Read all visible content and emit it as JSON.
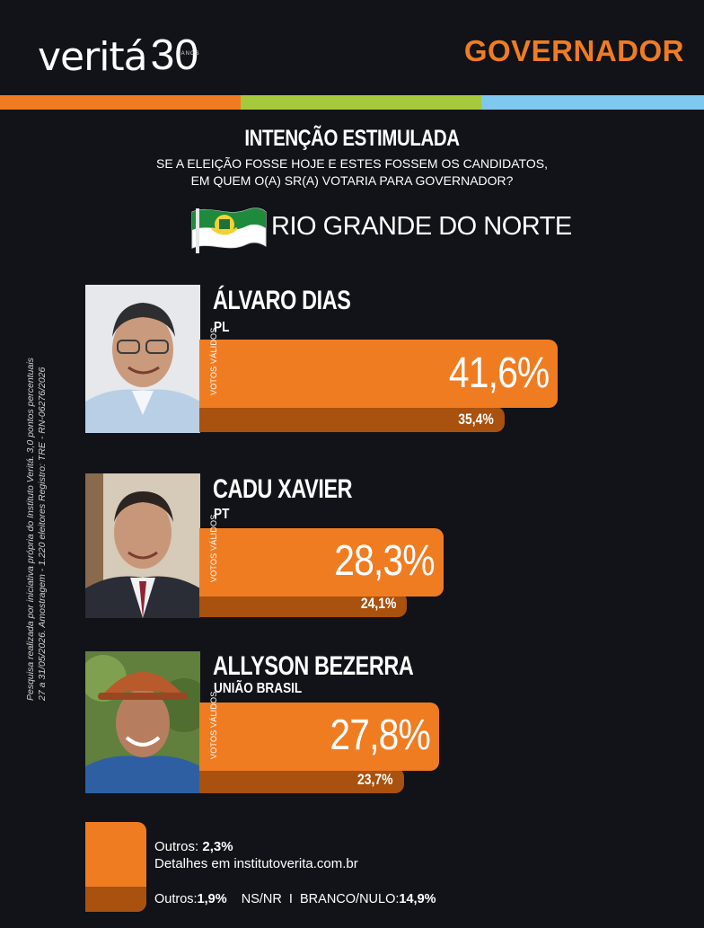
{
  "header": {
    "brand": "veritá",
    "years": "30",
    "years_caption": "ANOS",
    "section": "GOVERNADOR"
  },
  "colors": {
    "background": "#111318",
    "orange": "#f07c22",
    "dark_orange": "#a9510e",
    "stripe": [
      "#f07c22",
      "#a6c93c",
      "#7fc8ef"
    ]
  },
  "headline": {
    "title": "INTENÇÃO ESTIMULADA",
    "question_line1": "SE A ELEIÇÃO FOSSE HOJE E ESTES FOSSEM OS CANDIDATOS,",
    "question_line2": "EM QUEM O(A) SR(A) VOTARIA PARA GOVERNADOR?",
    "state": "RIO GRANDE DO NORTE"
  },
  "side_note": {
    "line1": "Pesquisa realizada por iniciativa própria do Instituto Veritá. 3,0 pontos percentuais",
    "line2": "27 a 31/05/2026. Amostragem - 1.220 eleitores Registro: TRE - RN-06276/2026"
  },
  "chart_data": {
    "type": "bar",
    "title": "INTENÇÃO ESTIMULADA",
    "categories": [
      "ÁLVARO DIAS",
      "CADU XAVIER",
      "ALLYSON BEZERRA"
    ],
    "parties": [
      "PL",
      "PT",
      "UNIÃO BRASIL"
    ],
    "series": [
      {
        "name": "VOTOS VÁLIDOS",
        "values": [
          41.6,
          28.3,
          27.8
        ],
        "labels": [
          "41,6%",
          "28,3%",
          "27,8%"
        ]
      },
      {
        "name": "",
        "values": [
          35.4,
          24.1,
          23.7
        ],
        "labels": [
          "35,4%",
          "24,1%",
          "23,7%"
        ]
      }
    ],
    "orientation": "horizontal",
    "grid": false
  },
  "footer": {
    "outros_valid_label": "Outros:",
    "outros_valid_value": "2,3%",
    "details": "Detalhes em institutoverita.com.br",
    "outros_total_label": "Outros:",
    "outros_total_value": "1,9%",
    "nsnr": "NS/NR",
    "separator": "I",
    "branco_label": "BRANCO/NULO:",
    "branco_value": "14,9%"
  }
}
